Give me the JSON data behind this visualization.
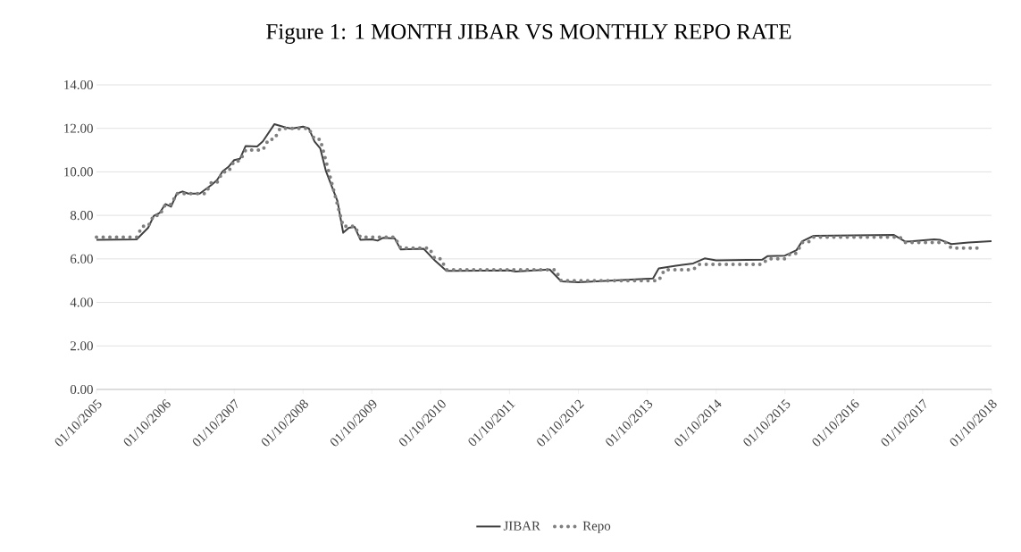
{
  "chart_data": {
    "type": "line",
    "title": "Figure 1: 1 MONTH JIBAR VS MONTHLY REPO RATE",
    "series": [
      {
        "name": "JIBAR",
        "color": "#404040",
        "line_style": "solid",
        "x": [
          "2005-10",
          "2006-05",
          "2006-07",
          "2006-08",
          "2006-09",
          "2006-10",
          "2006-11",
          "2006-12",
          "2007-01",
          "2007-02",
          "2007-04",
          "2007-06",
          "2007-07",
          "2007-08",
          "2007-09",
          "2007-10",
          "2007-11",
          "2007-12",
          "2008-02",
          "2008-03",
          "2008-05",
          "2008-07",
          "2008-08",
          "2008-10",
          "2008-11",
          "2008-12",
          "2009-01",
          "2009-02",
          "2009-04",
          "2009-05",
          "2009-06",
          "2009-07",
          "2009-08",
          "2009-10",
          "2009-11",
          "2009-12",
          "2010-02",
          "2010-03",
          "2010-07",
          "2010-09",
          "2010-11",
          "2011-10",
          "2011-11",
          "2012-05",
          "2012-07",
          "2012-10",
          "2013-11",
          "2013-12",
          "2014-03",
          "2014-06",
          "2014-08",
          "2014-10",
          "2015-06",
          "2015-07",
          "2015-10",
          "2015-12",
          "2016-01",
          "2016-03",
          "2017-05",
          "2017-07",
          "2017-12",
          "2018-01",
          "2018-03",
          "2018-06",
          "2018-10"
        ],
        "values": [
          6.88,
          6.9,
          7.43,
          7.98,
          8.11,
          8.52,
          8.4,
          9.0,
          9.1,
          9.0,
          9.0,
          9.39,
          9.62,
          10.03,
          10.23,
          10.54,
          10.6,
          11.19,
          11.17,
          11.4,
          12.19,
          12.04,
          11.99,
          12.08,
          12.0,
          11.4,
          11.08,
          10.03,
          8.66,
          7.2,
          7.43,
          7.47,
          6.88,
          6.9,
          6.84,
          6.97,
          6.94,
          6.44,
          6.47,
          5.92,
          5.45,
          5.47,
          5.42,
          5.51,
          4.97,
          4.93,
          5.1,
          5.56,
          5.69,
          5.79,
          6.02,
          5.93,
          5.96,
          6.13,
          6.15,
          6.4,
          6.81,
          7.06,
          7.1,
          6.79,
          6.9,
          6.88,
          6.68,
          6.75,
          6.81
        ]
      },
      {
        "name": "Repo",
        "color": "#7f7f7f",
        "line_style": "dotted",
        "x": [
          "2005-10",
          "2006-05",
          "2006-06",
          "2006-07",
          "2006-08",
          "2006-09",
          "2006-10",
          "2006-11",
          "2006-12",
          "2007-05",
          "2007-06",
          "2007-07",
          "2007-08",
          "2007-09",
          "2007-10",
          "2007-11",
          "2007-12",
          "2008-03",
          "2008-04",
          "2008-05",
          "2008-06",
          "2008-11",
          "2008-12",
          "2009-01",
          "2009-02",
          "2009-03",
          "2009-04",
          "2009-05",
          "2009-07",
          "2009-08",
          "2010-02",
          "2010-03",
          "2010-08",
          "2010-09",
          "2010-10",
          "2010-11",
          "2012-06",
          "2012-07",
          "2013-12",
          "2014-01",
          "2014-06",
          "2014-07",
          "2015-06",
          "2015-07",
          "2015-10",
          "2015-11",
          "2015-12",
          "2016-01",
          "2016-02",
          "2016-03",
          "2017-06",
          "2017-07",
          "2018-02",
          "2018-03",
          "2018-08"
        ],
        "values": [
          7.0,
          7.0,
          7.5,
          7.5,
          8.0,
          8.0,
          8.5,
          8.5,
          9.0,
          9.0,
          9.5,
          9.5,
          10.0,
          10.0,
          10.5,
          10.5,
          11.0,
          11.0,
          11.5,
          11.5,
          12.0,
          12.0,
          11.5,
          11.5,
          10.5,
          9.5,
          8.5,
          7.5,
          7.5,
          7.0,
          7.0,
          6.5,
          6.5,
          6.0,
          6.0,
          5.5,
          5.5,
          5.0,
          5.0,
          5.5,
          5.5,
          5.75,
          5.75,
          6.0,
          6.0,
          6.25,
          6.25,
          6.75,
          6.75,
          7.0,
          7.0,
          6.75,
          6.75,
          6.5,
          6.5
        ]
      }
    ],
    "xlim": [
      "2005-10",
      "2018-10"
    ],
    "xticks": [
      {
        "value": "2005-10",
        "label": "01/10/2005"
      },
      {
        "value": "2006-10",
        "label": "01/10/2006"
      },
      {
        "value": "2007-10",
        "label": "01/10/2007"
      },
      {
        "value": "2008-10",
        "label": "01/10/2008"
      },
      {
        "value": "2009-10",
        "label": "01/10/2009"
      },
      {
        "value": "2010-10",
        "label": "01/10/2010"
      },
      {
        "value": "2011-10",
        "label": "01/10/2011"
      },
      {
        "value": "2012-10",
        "label": "01/10/2012"
      },
      {
        "value": "2013-10",
        "label": "01/10/2013"
      },
      {
        "value": "2014-10",
        "label": "01/10/2014"
      },
      {
        "value": "2015-10",
        "label": "01/10/2015"
      },
      {
        "value": "2016-10",
        "label": "01/10/2016"
      },
      {
        "value": "2017-10",
        "label": "01/10/2017"
      },
      {
        "value": "2018-10",
        "label": "01/10/2018"
      }
    ],
    "ylim": [
      0,
      14
    ],
    "yticks": [
      {
        "value": 0,
        "label": "0.00"
      },
      {
        "value": 2,
        "label": "2.00"
      },
      {
        "value": 4,
        "label": "4.00"
      },
      {
        "value": 6,
        "label": "6.00"
      },
      {
        "value": 8,
        "label": "8.00"
      },
      {
        "value": 10,
        "label": "10.00"
      },
      {
        "value": 12,
        "label": "12.00"
      },
      {
        "value": 14,
        "label": "14.00"
      }
    ],
    "grid": "y",
    "legend": "bottom",
    "marker": "none"
  }
}
